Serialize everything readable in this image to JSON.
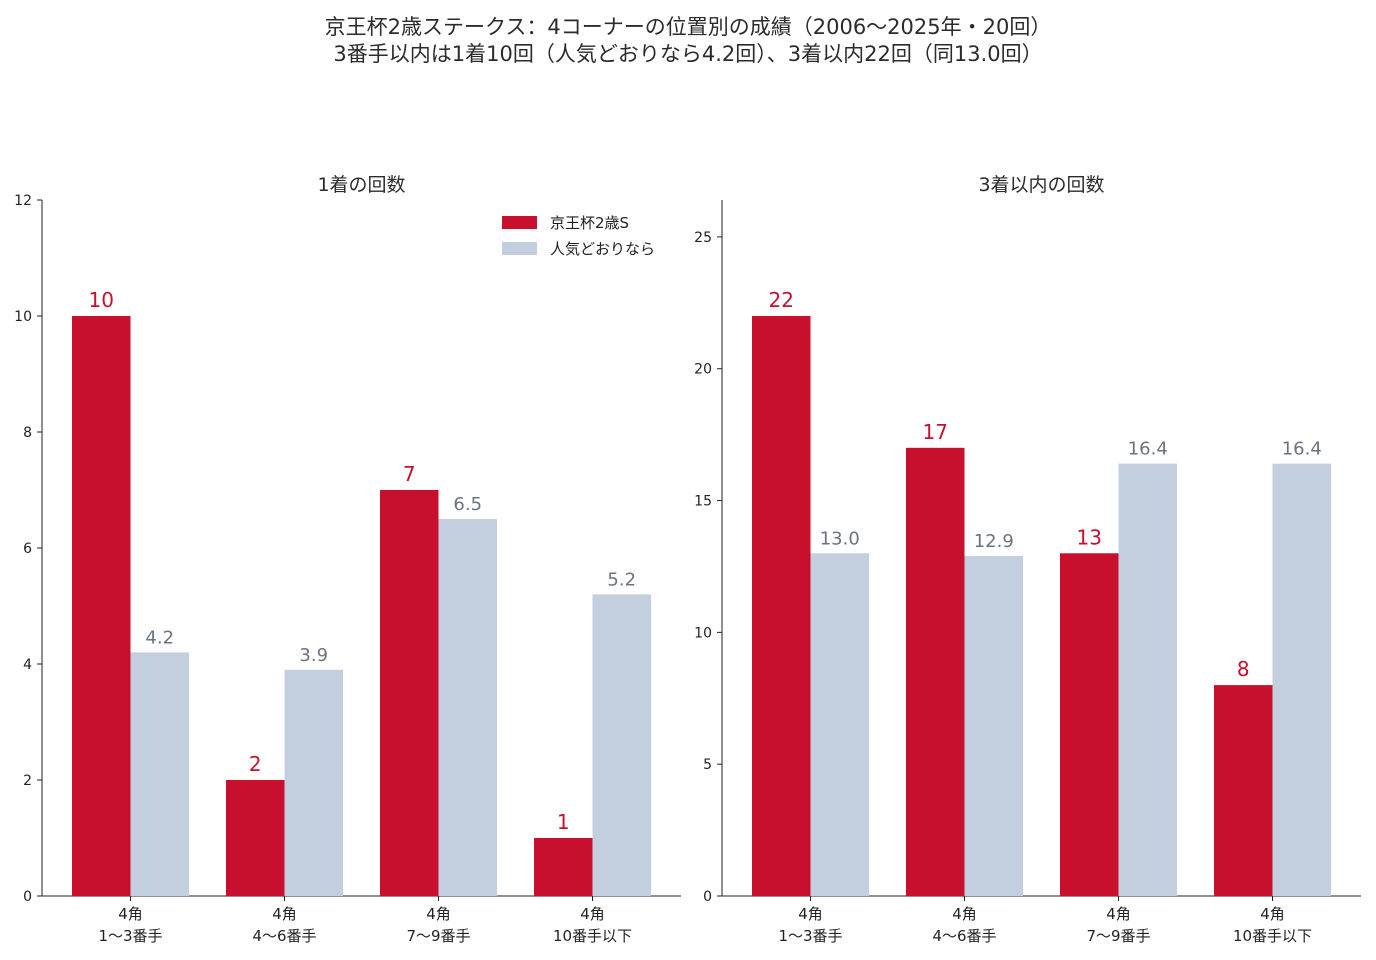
{
  "suptitle_line1": "京王杯2歳ステークス：4コーナーの位置別の成績（2006〜2025年・20回）",
  "suptitle_line2": "3番手以内は1着10回（人気どおりなら4.2回）、3着以内22回（同13.0回）",
  "colors": {
    "main": "#c8102e",
    "sub": "#c3cfdf",
    "sub_label": "#6b7280"
  },
  "legend": [
    "京王杯2歳S",
    "人気どおりなら"
  ],
  "chart_data": [
    {
      "type": "bar",
      "title": "1着の回数",
      "categories": [
        [
          "4角",
          "1〜3番手"
        ],
        [
          "4角",
          "4〜6番手"
        ],
        [
          "4角",
          "7〜9番手"
        ],
        [
          "4角",
          "10番手以下"
        ]
      ],
      "series": [
        {
          "name": "京王杯2歳S",
          "values": [
            10,
            2,
            7,
            1
          ],
          "labels": [
            "10",
            "2",
            "7",
            "1"
          ]
        },
        {
          "name": "人気どおりなら",
          "values": [
            4.2,
            3.9,
            6.5,
            5.2
          ],
          "labels": [
            "4.2",
            "3.9",
            "6.5",
            "5.2"
          ]
        }
      ],
      "ylim": [
        0,
        12
      ],
      "yticks": [
        0,
        2,
        4,
        6,
        8,
        10,
        12
      ],
      "legend_position": "upper-right"
    },
    {
      "type": "bar",
      "title": "3着以内の回数",
      "categories": [
        [
          "4角",
          "1〜3番手"
        ],
        [
          "4角",
          "4〜6番手"
        ],
        [
          "4角",
          "7〜9番手"
        ],
        [
          "4角",
          "10番手以下"
        ]
      ],
      "series": [
        {
          "name": "京王杯2歳S",
          "values": [
            22,
            17,
            13,
            8
          ],
          "labels": [
            "22",
            "17",
            "13",
            "8"
          ]
        },
        {
          "name": "人気どおりなら",
          "values": [
            13.0,
            12.9,
            16.4,
            16.4
          ],
          "labels": [
            "13.0",
            "12.9",
            "16.4",
            "16.4"
          ]
        }
      ],
      "ylim": [
        0,
        26.4
      ],
      "yticks": [
        0,
        5,
        10,
        15,
        20,
        25
      ]
    }
  ]
}
